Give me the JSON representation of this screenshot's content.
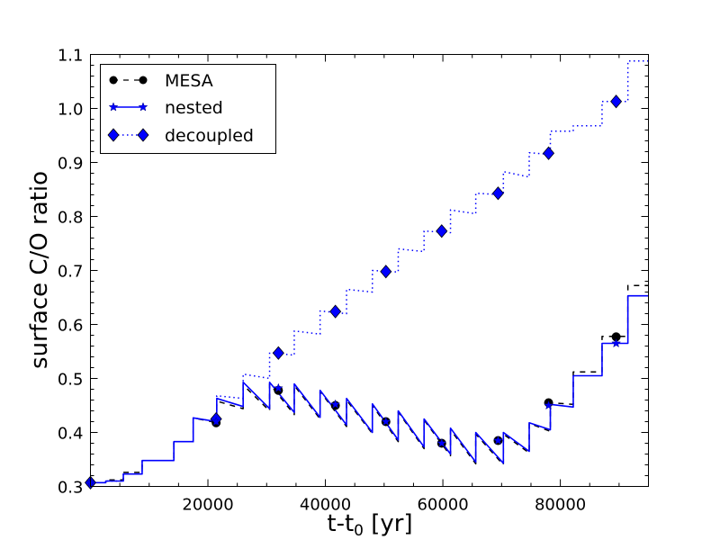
{
  "chart_data": {
    "type": "line",
    "title": "",
    "xlabel": "t-t",
    "xlabel_subscript": "0",
    "xlabel_suffix": " [yr]",
    "ylabel": "surface C/O ratio",
    "xlim": [
      0,
      95000
    ],
    "ylim": [
      0.3,
      1.1
    ],
    "x_ticks": [
      20000,
      40000,
      60000,
      80000
    ],
    "x_tick_labels": [
      "20000",
      "40000",
      "60000",
      "80000"
    ],
    "x_minor_step": 5000,
    "y_ticks": [
      0.3,
      0.4,
      0.5,
      0.6,
      0.7,
      0.8,
      0.9,
      1.0,
      1.1
    ],
    "y_tick_labels": [
      "0.3",
      "0.4",
      "0.5",
      "0.6",
      "0.7",
      "0.8",
      "0.9",
      "1.0",
      "1.1"
    ],
    "y_minor_step": 0.02,
    "grid": false,
    "legend_position": "top-left",
    "series": [
      {
        "name": "MESA",
        "color": "#000000",
        "linestyle": "dashed",
        "marker": "circle",
        "line": [
          [
            0,
            0.307
          ],
          [
            2600,
            0.307
          ],
          [
            2600,
            0.312
          ],
          [
            5600,
            0.312
          ],
          [
            5600,
            0.326
          ],
          [
            8800,
            0.326
          ],
          [
            8800,
            0.348
          ],
          [
            14200,
            0.348
          ],
          [
            14200,
            0.383
          ],
          [
            17500,
            0.383
          ],
          [
            17500,
            0.427
          ],
          [
            21500,
            0.418
          ],
          [
            21500,
            0.458
          ],
          [
            26000,
            0.444
          ],
          [
            26000,
            0.488
          ],
          [
            30500,
            0.44
          ],
          [
            30500,
            0.49
          ],
          [
            34700,
            0.433
          ],
          [
            34700,
            0.487
          ],
          [
            39100,
            0.425
          ],
          [
            39100,
            0.476
          ],
          [
            43600,
            0.411
          ],
          [
            43600,
            0.46
          ],
          [
            48000,
            0.398
          ],
          [
            48000,
            0.45
          ],
          [
            52400,
            0.383
          ],
          [
            52400,
            0.438
          ],
          [
            56800,
            0.37
          ],
          [
            56800,
            0.423
          ],
          [
            61300,
            0.357
          ],
          [
            61300,
            0.405
          ],
          [
            65600,
            0.342
          ],
          [
            65600,
            0.397
          ],
          [
            70300,
            0.34
          ],
          [
            70300,
            0.397
          ],
          [
            74700,
            0.362
          ],
          [
            74700,
            0.417
          ],
          [
            78300,
            0.402
          ],
          [
            78300,
            0.455
          ],
          [
            82200,
            0.452
          ],
          [
            82200,
            0.512
          ],
          [
            87100,
            0.512
          ],
          [
            87100,
            0.578
          ],
          [
            91500,
            0.578
          ],
          [
            91500,
            0.672
          ],
          [
            95000,
            0.672
          ]
        ],
        "markers": [
          [
            0,
            0.307
          ],
          [
            21400,
            0.418
          ],
          [
            32000,
            0.478
          ],
          [
            41700,
            0.45
          ],
          [
            50300,
            0.42
          ],
          [
            59800,
            0.38
          ],
          [
            69400,
            0.385
          ],
          [
            78000,
            0.455
          ],
          [
            89500,
            0.577
          ]
        ]
      },
      {
        "name": "nested",
        "color": "#0000ff",
        "linestyle": "solid",
        "marker": "star",
        "line": [
          [
            0,
            0.307
          ],
          [
            2600,
            0.307
          ],
          [
            2600,
            0.31
          ],
          [
            5600,
            0.31
          ],
          [
            5600,
            0.323
          ],
          [
            8800,
            0.323
          ],
          [
            8800,
            0.348
          ],
          [
            14200,
            0.348
          ],
          [
            14200,
            0.383
          ],
          [
            17500,
            0.383
          ],
          [
            17500,
            0.427
          ],
          [
            21500,
            0.42
          ],
          [
            21500,
            0.463
          ],
          [
            26000,
            0.448
          ],
          [
            26000,
            0.493
          ],
          [
            30500,
            0.444
          ],
          [
            30500,
            0.493
          ],
          [
            34700,
            0.437
          ],
          [
            34700,
            0.49
          ],
          [
            39100,
            0.428
          ],
          [
            39100,
            0.478
          ],
          [
            43600,
            0.414
          ],
          [
            43600,
            0.463
          ],
          [
            48000,
            0.4
          ],
          [
            48000,
            0.453
          ],
          [
            52400,
            0.386
          ],
          [
            52400,
            0.44
          ],
          [
            56800,
            0.373
          ],
          [
            56800,
            0.425
          ],
          [
            61300,
            0.36
          ],
          [
            61300,
            0.408
          ],
          [
            65600,
            0.345
          ],
          [
            65600,
            0.4
          ],
          [
            70300,
            0.343
          ],
          [
            70300,
            0.4
          ],
          [
            74700,
            0.365
          ],
          [
            74700,
            0.418
          ],
          [
            78300,
            0.405
          ],
          [
            78300,
            0.452
          ],
          [
            82200,
            0.447
          ],
          [
            82200,
            0.505
          ],
          [
            87100,
            0.505
          ],
          [
            87100,
            0.565
          ],
          [
            91500,
            0.565
          ],
          [
            91500,
            0.653
          ],
          [
            95000,
            0.653
          ]
        ],
        "markers": [
          [
            0,
            0.307
          ],
          [
            21400,
            0.42
          ],
          [
            32000,
            0.482
          ],
          [
            41700,
            0.452
          ],
          [
            50300,
            0.42
          ],
          [
            59800,
            0.38
          ],
          [
            69400,
            0.385
          ],
          [
            78000,
            0.45
          ],
          [
            89500,
            0.565
          ]
        ]
      },
      {
        "name": "decoupled",
        "color": "#0000ff",
        "linestyle": "dotted",
        "marker": "diamond",
        "line": [
          [
            0,
            0.307
          ],
          [
            2600,
            0.307
          ],
          [
            2600,
            0.31
          ],
          [
            5600,
            0.31
          ],
          [
            5600,
            0.323
          ],
          [
            8800,
            0.323
          ],
          [
            8800,
            0.348
          ],
          [
            14200,
            0.348
          ],
          [
            14200,
            0.383
          ],
          [
            17500,
            0.383
          ],
          [
            17500,
            0.427
          ],
          [
            21500,
            0.42
          ],
          [
            21500,
            0.468
          ],
          [
            26000,
            0.463
          ],
          [
            26000,
            0.508
          ],
          [
            30500,
            0.5
          ],
          [
            30500,
            0.548
          ],
          [
            34700,
            0.543
          ],
          [
            34700,
            0.588
          ],
          [
            39100,
            0.582
          ],
          [
            39100,
            0.625
          ],
          [
            43600,
            0.62
          ],
          [
            43600,
            0.665
          ],
          [
            48000,
            0.66
          ],
          [
            48000,
            0.7
          ],
          [
            52400,
            0.697
          ],
          [
            52400,
            0.74
          ],
          [
            56800,
            0.735
          ],
          [
            56800,
            0.773
          ],
          [
            61300,
            0.77
          ],
          [
            61300,
            0.812
          ],
          [
            65600,
            0.805
          ],
          [
            65600,
            0.843
          ],
          [
            70300,
            0.84
          ],
          [
            70300,
            0.883
          ],
          [
            74700,
            0.873
          ],
          [
            74700,
            0.918
          ],
          [
            78300,
            0.915
          ],
          [
            78300,
            0.958
          ],
          [
            82200,
            0.958
          ],
          [
            82200,
            0.968
          ],
          [
            87100,
            0.968
          ],
          [
            87100,
            1.013
          ],
          [
            91500,
            1.013
          ],
          [
            91500,
            1.088
          ],
          [
            95000,
            1.088
          ]
        ],
        "markers": [
          [
            0,
            0.307
          ],
          [
            21400,
            0.425
          ],
          [
            32000,
            0.547
          ],
          [
            41700,
            0.624
          ],
          [
            50300,
            0.698
          ],
          [
            59800,
            0.773
          ],
          [
            69400,
            0.843
          ],
          [
            78000,
            0.917
          ],
          [
            89500,
            1.013
          ]
        ]
      }
    ]
  }
}
